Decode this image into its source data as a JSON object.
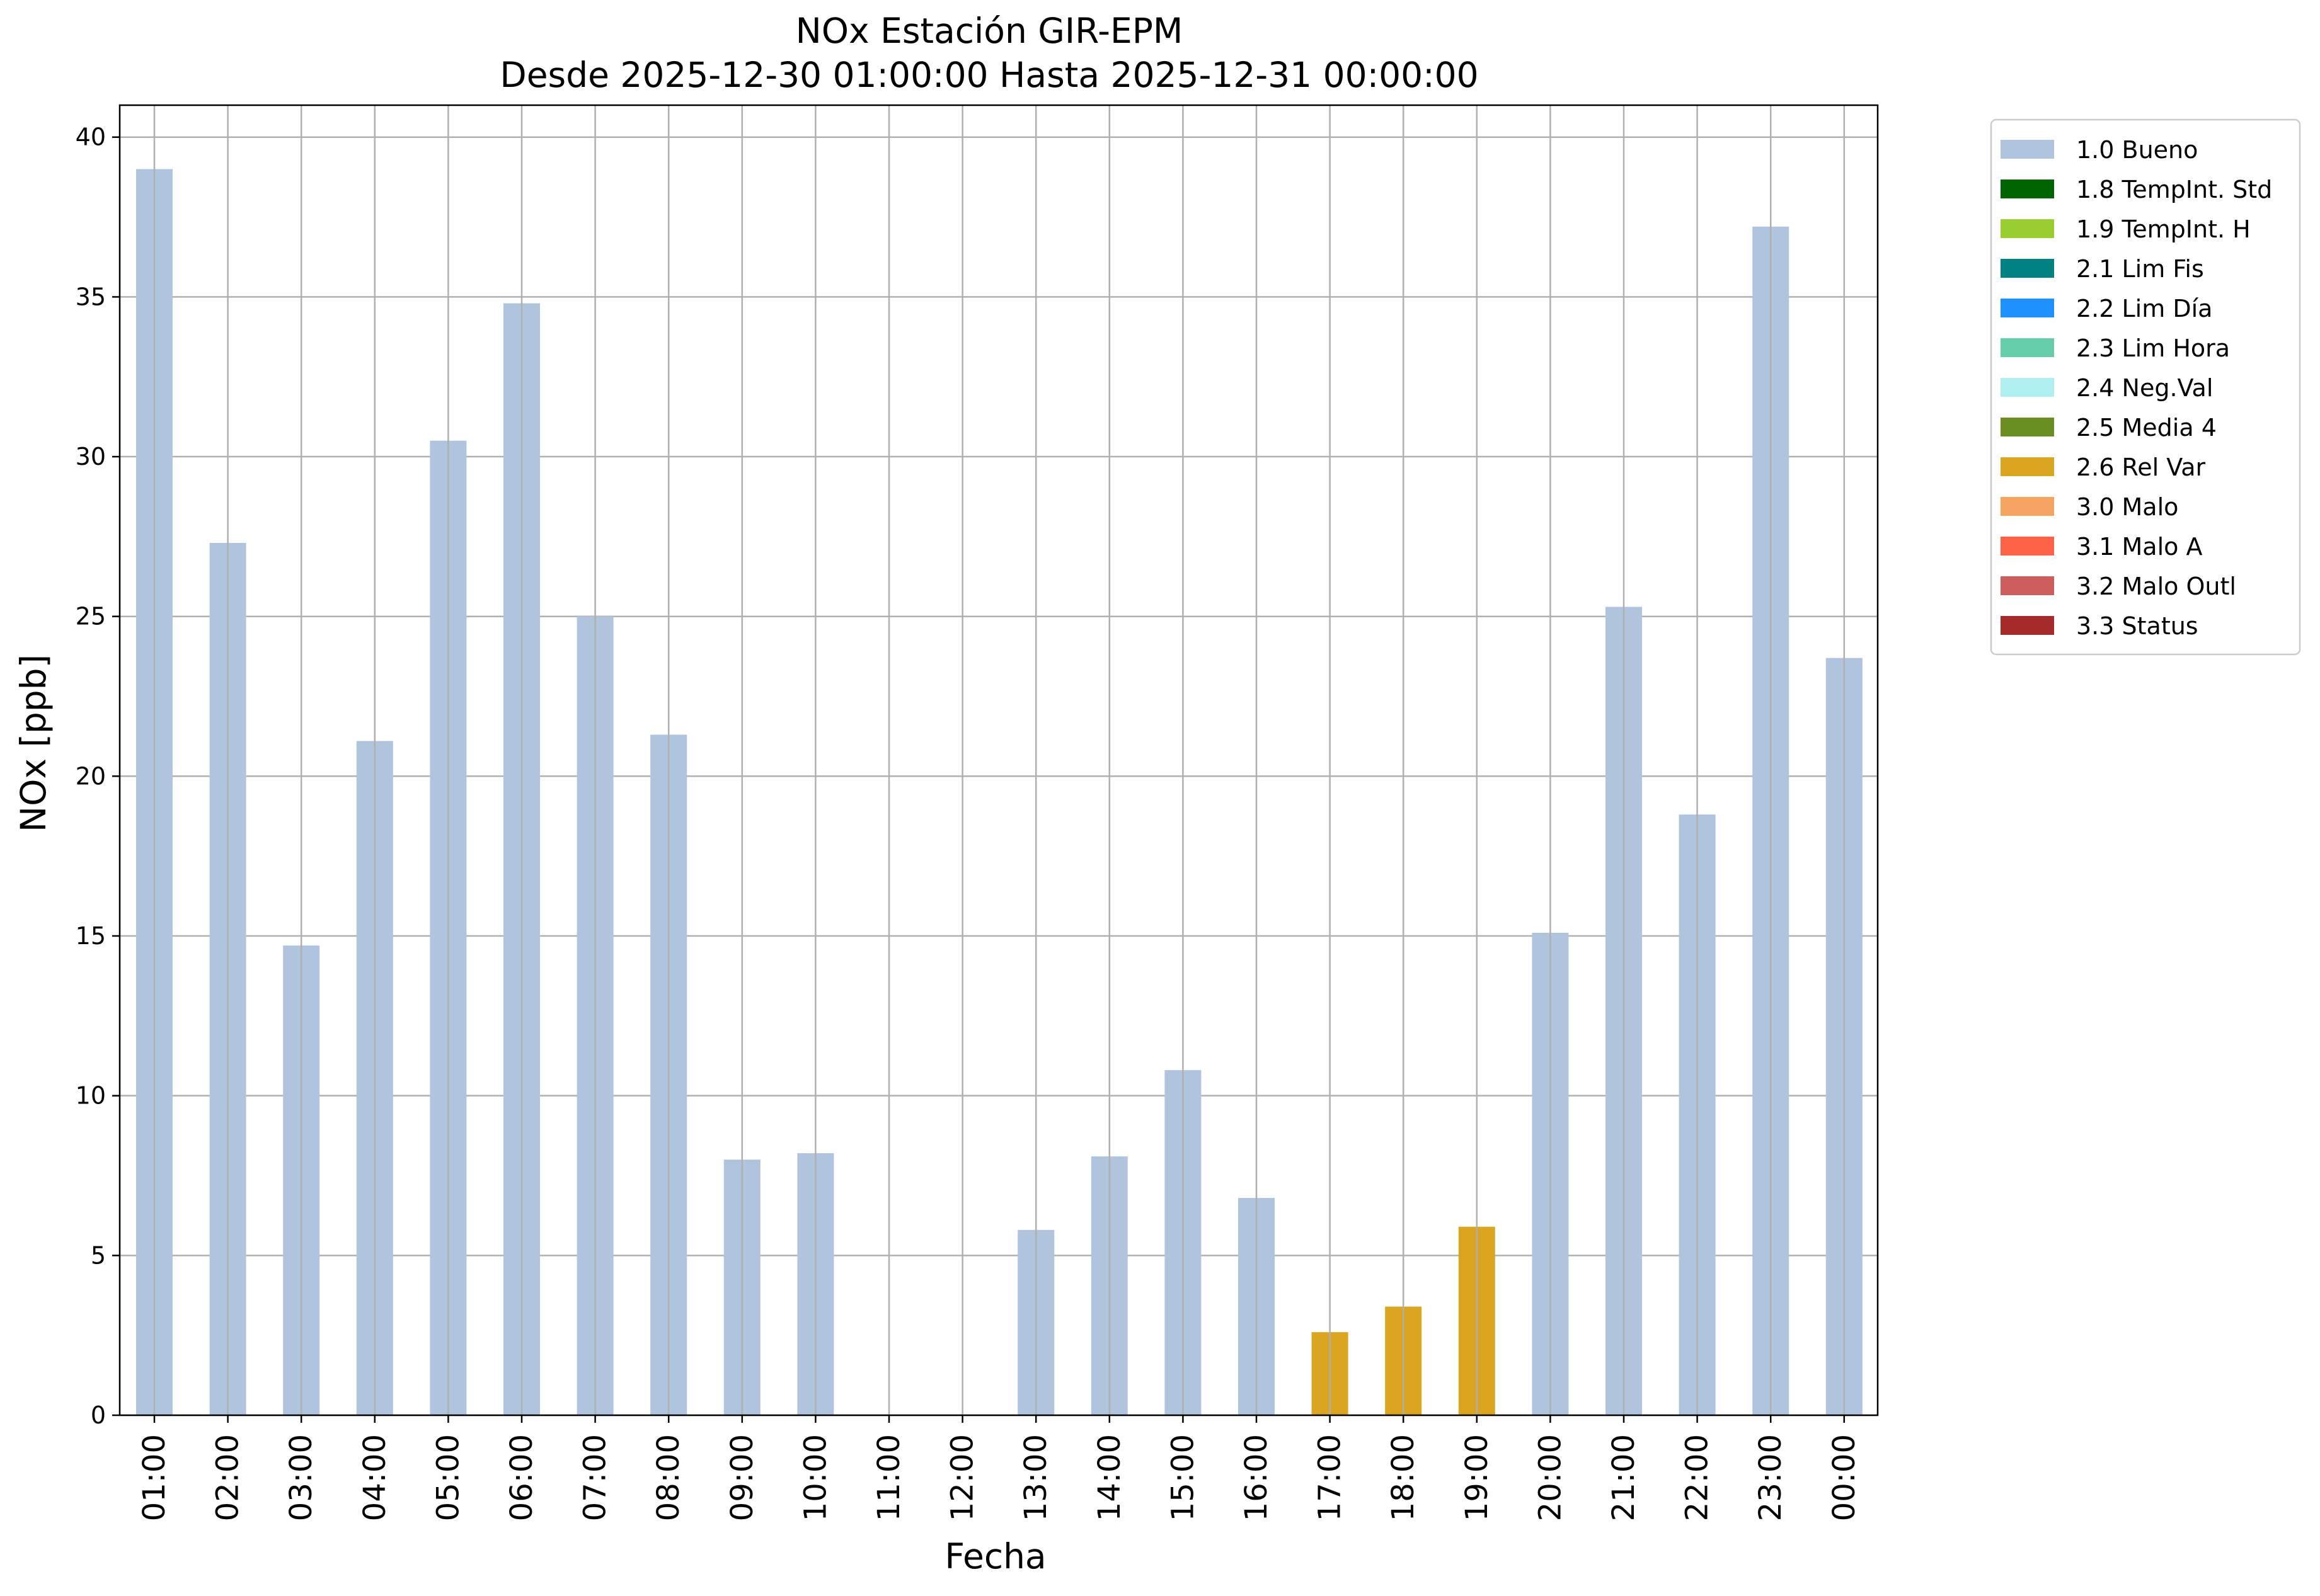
{
  "chart_data": {
    "type": "bar",
    "title": "NOx Estación GIR-EPM",
    "subtitle": "Desde 2025-12-30 01:00:00 Hasta 2025-12-31 00:00:00",
    "xlabel": "Fecha",
    "ylabel": "NOx [ppb]",
    "ylim": [
      0,
      41
    ],
    "yticks": [
      "0",
      "5",
      "10",
      "15",
      "20",
      "25",
      "30",
      "35",
      "40"
    ],
    "grid": true,
    "legend_position": "outside-top-right",
    "categories": [
      "01:00",
      "02:00",
      "03:00",
      "04:00",
      "05:00",
      "06:00",
      "07:00",
      "08:00",
      "09:00",
      "10:00",
      "11:00",
      "12:00",
      "13:00",
      "14:00",
      "15:00",
      "16:00",
      "17:00",
      "18:00",
      "19:00",
      "20:00",
      "21:00",
      "22:00",
      "23:00",
      "00:00"
    ],
    "values": [
      39.0,
      27.3,
      14.7,
      21.1,
      30.5,
      34.8,
      25.0,
      21.3,
      8.0,
      8.2,
      null,
      null,
      5.8,
      8.1,
      10.8,
      6.8,
      2.6,
      3.4,
      5.9,
      15.1,
      25.3,
      18.8,
      37.2,
      23.7
    ],
    "flags": [
      "1.0 Bueno",
      "1.0 Bueno",
      "1.0 Bueno",
      "1.0 Bueno",
      "1.0 Bueno",
      "1.0 Bueno",
      "1.0 Bueno",
      "1.0 Bueno",
      "1.0 Bueno",
      "1.0 Bueno",
      null,
      null,
      "1.0 Bueno",
      "1.0 Bueno",
      "1.0 Bueno",
      "1.0 Bueno",
      "2.6 Rel Var",
      "2.6 Rel Var",
      "2.6 Rel Var",
      "1.0 Bueno",
      "1.0 Bueno",
      "1.0 Bueno",
      "1.0 Bueno",
      "1.0 Bueno"
    ],
    "legend": [
      {
        "label": "1.0 Bueno",
        "color": "#b0c4de"
      },
      {
        "label": "1.8 TempInt. Std",
        "color": "#006400"
      },
      {
        "label": "1.9 TempInt. H",
        "color": "#9acd32"
      },
      {
        "label": "2.1 Lim Fis",
        "color": "#008080"
      },
      {
        "label": "2.2 Lim Día",
        "color": "#1e90ff"
      },
      {
        "label": "2.3 Lim Hora",
        "color": "#66cdaa"
      },
      {
        "label": "2.4 Neg.Val",
        "color": "#afeeee"
      },
      {
        "label": "2.5 Media 4",
        "color": "#6b8e23"
      },
      {
        "label": "2.6 Rel Var",
        "color": "#daa520"
      },
      {
        "label": "3.0 Malo",
        "color": "#f4a460"
      },
      {
        "label": "3.1 Malo A",
        "color": "#ff6347"
      },
      {
        "label": "3.2 Malo Outl",
        "color": "#cd5c5c"
      },
      {
        "label": "3.3 Status",
        "color": "#a52a2a"
      }
    ]
  }
}
